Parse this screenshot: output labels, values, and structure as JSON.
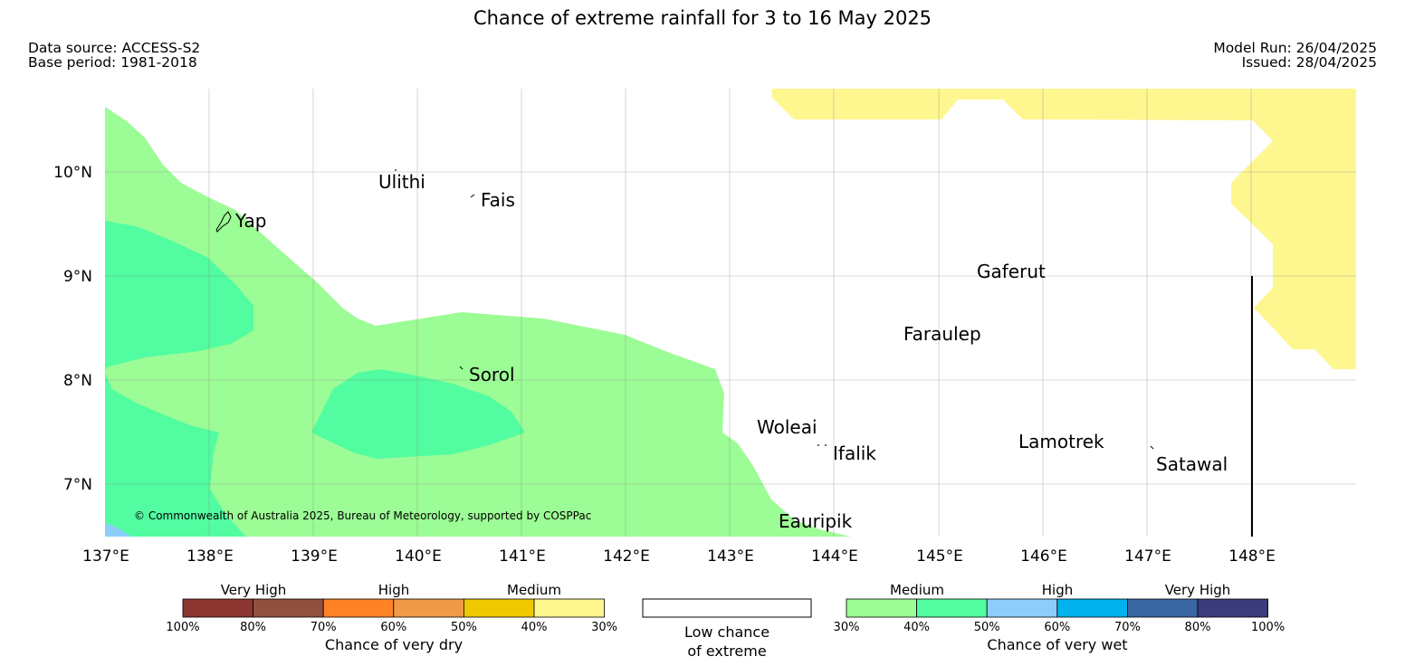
{
  "title": "Chance of extreme rainfall for 3 to 16 May 2025",
  "meta_left": [
    "Data source: ACCESS-S2",
    "Base period: 1981-2018"
  ],
  "meta_right": [
    "Model Run: 26/04/2025",
    "Issued: 28/04/2025"
  ],
  "map": {
    "lat_labels": [
      "10°N",
      "9°N",
      "8°N",
      "7°N"
    ],
    "lon_labels": [
      "137°E",
      "138°E",
      "139°E",
      "140°E",
      "141°E",
      "142°E",
      "143°E",
      "144°E",
      "145°E",
      "146°E",
      "147°E",
      "148°E"
    ],
    "places": [
      "Ulithi",
      "Fais",
      "Yap",
      "Gaferut",
      "Faraulep",
      "Sorol",
      "Woleai",
      "Ifalik",
      "Lamotrek",
      "Satawal",
      "Eauripik"
    ],
    "copyright": "© Commonwealth of Australia 2025, Bureau of Meteorology, supported by COSPPac",
    "category_colors": {
      "very_wet_30_40": "#9cfc95",
      "very_wet_40_50": "#52fca0",
      "very_wet_50_60": "#8ccdf9",
      "very_dry_30_40": "#fef68f"
    }
  },
  "legend": {
    "dry": {
      "headings": [
        "Very High",
        "High",
        "Medium"
      ],
      "colors": [
        "#8b3630",
        "#8f5040",
        "#ff8326",
        "#f09a48",
        "#f0c800",
        "#fef68f"
      ],
      "ticks": [
        "100%",
        "80%",
        "70%",
        "60%",
        "50%",
        "40%",
        "30%"
      ],
      "caption": "Chance of very dry"
    },
    "low": {
      "caption_line1": "Low chance",
      "caption_line2": "of extreme"
    },
    "wet": {
      "headings": [
        "Medium",
        "High",
        "Very High"
      ],
      "colors": [
        "#9cfc95",
        "#52fca0",
        "#8ccdf9",
        "#00b2ee",
        "#3a66a2",
        "#3c3c7c"
      ],
      "ticks": [
        "30%",
        "40%",
        "50%",
        "60%",
        "70%",
        "80%",
        "100%"
      ],
      "caption": "Chance of very wet"
    }
  }
}
